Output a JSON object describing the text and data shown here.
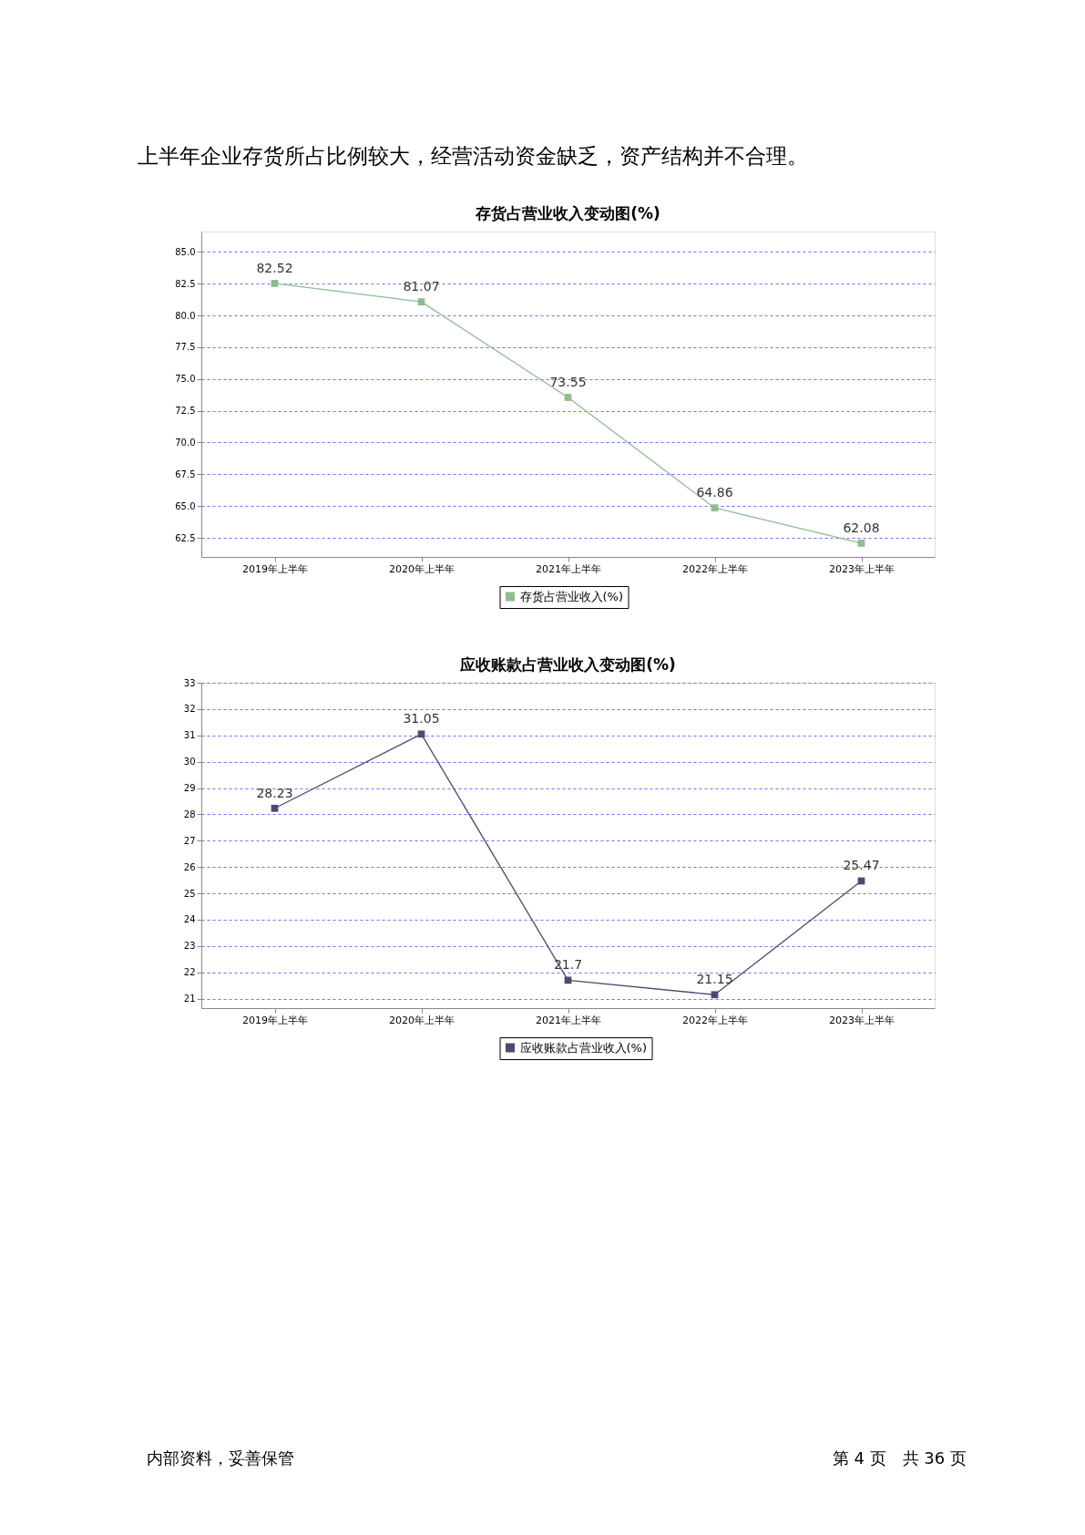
{
  "chart_data": [
    {
      "type": "line",
      "title": "存货占营业收入变动图(%)",
      "categories": [
        "2019年上半年",
        "2020年上半年",
        "2021年上半年",
        "2022年上半年",
        "2023年上半年"
      ],
      "series": [
        {
          "name": "存货占营业收入(%)",
          "color": "#8fbc8f",
          "values": [
            82.52,
            81.07,
            73.55,
            64.86,
            62.08
          ]
        }
      ],
      "ylim": [
        61.0,
        86.6
      ],
      "yticks": [
        {
          "value": 62.5,
          "label": "62.5"
        },
        {
          "value": 65,
          "label": "65.0"
        },
        {
          "value": 67.5,
          "label": "67.5"
        },
        {
          "value": 70,
          "label": "70.0"
        },
        {
          "value": 72.5,
          "label": "72.5"
        },
        {
          "value": 75,
          "label": "75.0"
        },
        {
          "value": 77.5,
          "label": "77.5"
        },
        {
          "value": 80,
          "label": "80.0"
        },
        {
          "value": 82.5,
          "label": "82.5"
        },
        {
          "value": 85,
          "label": "85.0"
        }
      ],
      "grid": "y",
      "legend": "bottom",
      "marker": "square",
      "line_style": "solid",
      "data_labels": true,
      "annotations": [
        "上半年企业存货所占比例较大，经营活动资金缺乏，资产结构并不合理。"
      ]
    },
    {
      "type": "line",
      "title": "应收账款占营业收入变动图(%)",
      "categories": [
        "2019年上半年",
        "2020年上半年",
        "2021年上半年",
        "2022年上半年",
        "2023年上半年"
      ],
      "series": [
        {
          "name": "应收账款占营业收入(%)",
          "color": "#4b4b6e",
          "values": [
            28.23,
            31.05,
            21.7,
            21.15,
            25.47
          ]
        }
      ],
      "ylim": [
        20.64,
        33
      ],
      "yticks": [
        21,
        22,
        23,
        24,
        25,
        26,
        27,
        28,
        29,
        30,
        31,
        32,
        33
      ],
      "grid": "y",
      "legend": "bottom",
      "marker": "square",
      "line_style": "solid",
      "data_labels": true,
      "annotations": [
        "内部资料，妥善保管",
        "第 4 页　共 36 页"
      ]
    }
  ]
}
